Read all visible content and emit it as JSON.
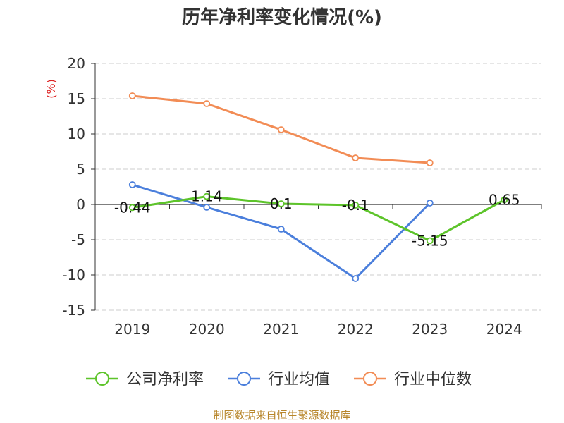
{
  "chart_data": {
    "type": "line",
    "title": "历年净利率变化情况(%)",
    "ylabel": "(%)",
    "categories": [
      "2019",
      "2020",
      "2021",
      "2022",
      "2023",
      "2024"
    ],
    "ylim": [
      -15,
      20
    ],
    "yticks": [
      20,
      15,
      10,
      5,
      0,
      -5,
      -10,
      -15
    ],
    "grid": true,
    "legend_position": "bottom",
    "series": [
      {
        "name": "公司净利率",
        "color": "#5dc42a",
        "values": [
          -0.44,
          1.14,
          0.1,
          -0.1,
          -5.15,
          0.65
        ],
        "labels": [
          "-0.44",
          "1.14",
          "0.1",
          "-0.1",
          "-5.15",
          "0.65"
        ]
      },
      {
        "name": "行业均值",
        "color": "#4b7fdc",
        "values": [
          2.8,
          -0.4,
          -3.5,
          -10.5,
          0.2,
          null
        ]
      },
      {
        "name": "行业中位数",
        "color": "#f28c55",
        "values": [
          15.4,
          14.3,
          10.6,
          6.6,
          5.9,
          null
        ]
      }
    ],
    "ylabel_color": "#dd2222",
    "source": "制图数据来自恒生聚源数据库"
  }
}
